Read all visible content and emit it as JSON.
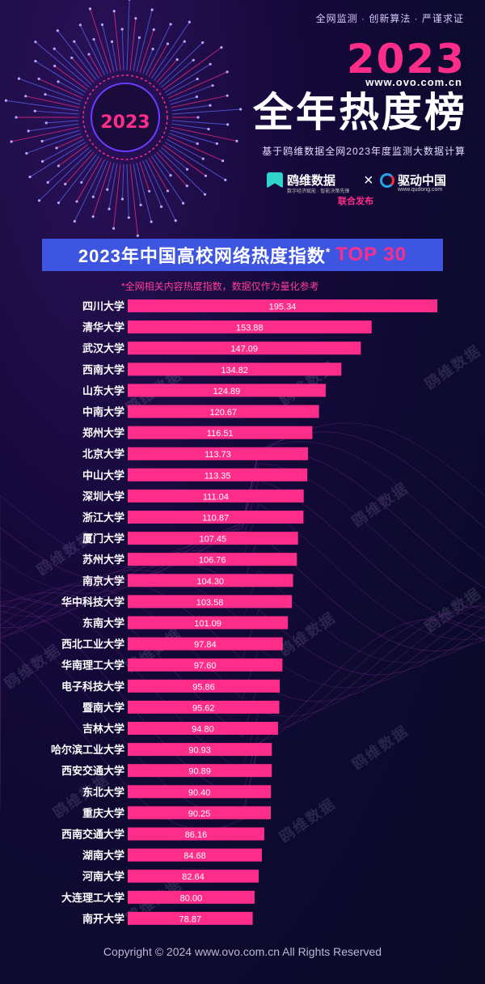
{
  "header": {
    "tagline": "全网监测 · 创新算法 · 严谨求证",
    "year": "2023",
    "site": "www.ovo.com.cn",
    "main_title": "全年热度榜",
    "subtitle": "基于鸥维数据全网2023年度监测大数据计算",
    "burst_label": "2023",
    "brand_left": "鸥维数据",
    "brand_left_sub": "数字经济赋能 · 智能决策先锋",
    "brand_right": "驱动中国",
    "brand_right_sub": "www.qudong.com",
    "joint_release": "联合发布"
  },
  "banner": {
    "title": "2023年中国高校网络热度指数",
    "star": "*",
    "highlight": "TOP 30"
  },
  "note": "*全网相关内容热度指数，数据仅作为量化参考",
  "footer": {
    "copyright": "Copyright © 2024  www.ovo.com.cn All Rights Reserved"
  },
  "watermark": "鸥维数据",
  "colors": {
    "bar": "#ff2d8a",
    "banner": "#3d55e0",
    "accent": "#ff2d8a"
  },
  "chart_data": {
    "type": "bar",
    "orientation": "horizontal",
    "categories": [
      "四川大学",
      "清华大学",
      "武汉大学",
      "西南大学",
      "山东大学",
      "中南大学",
      "郑州大学",
      "北京大学",
      "中山大学",
      "深圳大学",
      "浙江大学",
      "厦门大学",
      "苏州大学",
      "南京大学",
      "华中科技大学",
      "东南大学",
      "西北工业大学",
      "华南理工大学",
      "电子科技大学",
      "暨南大学",
      "吉林大学",
      "哈尔滨工业大学",
      "西安交通大学",
      "东北大学",
      "重庆大学",
      "西南交通大学",
      "湖南大学",
      "河南大学",
      "大连理工大学",
      "南开大学"
    ],
    "values": [
      195.34,
      153.88,
      147.09,
      134.82,
      124.89,
      120.67,
      116.51,
      113.73,
      113.35,
      111.04,
      110.87,
      107.45,
      106.76,
      104.3,
      103.58,
      101.09,
      97.84,
      97.6,
      95.86,
      95.62,
      94.8,
      90.93,
      90.89,
      90.4,
      90.25,
      86.16,
      84.68,
      82.64,
      80.0,
      78.87
    ],
    "value_labels": [
      "195.34",
      "153.88",
      "147.09",
      "134.82",
      "124.89",
      "120.67",
      "116.51",
      "113.73",
      "113.35",
      "111.04",
      "110.87",
      "107.45",
      "106.76",
      "104.30",
      "103.58",
      "101.09",
      "97.84",
      "97.60",
      "95.86",
      "95.62",
      "94.80",
      "90.93",
      "90.89",
      "90.40",
      "90.25",
      "86.16",
      "84.68",
      "82.64",
      "80.00",
      "78.87"
    ],
    "title": "2023年中国高校网络热度指数*TOP 30",
    "xlabel": "",
    "ylabel": ""
  }
}
